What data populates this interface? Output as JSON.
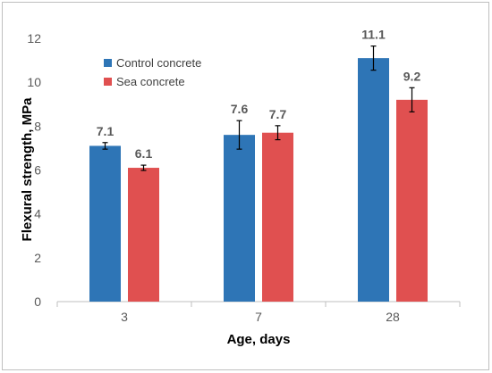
{
  "chart_data": {
    "type": "bar",
    "title": "",
    "xlabel": "Age, days",
    "ylabel": "Flexural strength, MPa",
    "categories": [
      "3",
      "7",
      "28"
    ],
    "series": [
      {
        "name": "Control concrete",
        "color": "#2e75b6",
        "values": [
          7.1,
          7.6,
          11.1
        ],
        "error": [
          0.15,
          0.65,
          0.55
        ]
      },
      {
        "name": "Sea concrete",
        "color": "#e05050",
        "values": [
          6.1,
          7.7,
          9.2
        ],
        "error": [
          0.12,
          0.32,
          0.55
        ]
      }
    ],
    "ylim": [
      0,
      12
    ],
    "yticks": [
      0,
      2,
      4,
      6,
      8,
      10,
      12
    ],
    "grid": false,
    "legend_position": "top-left"
  }
}
